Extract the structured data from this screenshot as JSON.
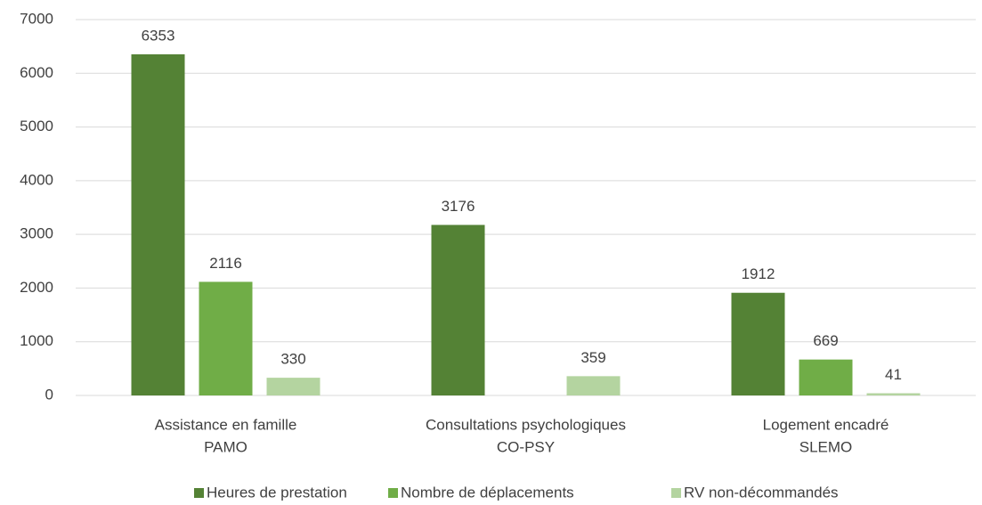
{
  "chart_data": {
    "type": "bar",
    "categories": [
      [
        "Assistance en famille",
        "PAMO"
      ],
      [
        "Consultations psychologiques",
        "CO-PSY"
      ],
      [
        "Logement encadré",
        "SLEMO"
      ]
    ],
    "series": [
      {
        "name": "Heures de prestation",
        "color": "#548235",
        "values": [
          6353,
          3176,
          1912
        ]
      },
      {
        "name": "Nombre de déplacements",
        "color": "#70ad47",
        "values": [
          2116,
          null,
          669
        ]
      },
      {
        "name": "RV non-décommandés",
        "color": "#b4d4a0",
        "values": [
          330,
          359,
          41
        ]
      }
    ],
    "ylim": [
      0,
      7000
    ],
    "yticks": [
      0,
      1000,
      2000,
      3000,
      4000,
      5000,
      6000,
      7000
    ],
    "grid": true,
    "legend": "bottom"
  }
}
